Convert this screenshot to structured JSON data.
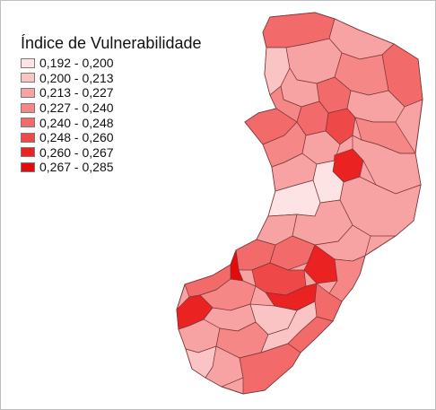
{
  "legend": {
    "title": "Índice de Vulnerabilidade",
    "classes": [
      {
        "label": "0,192 - 0,200",
        "color": "#fde3e3"
      },
      {
        "label": "0,200 - 0,213",
        "color": "#fbc4c4"
      },
      {
        "label": "0,213 - 0,227",
        "color": "#f8a3a3"
      },
      {
        "label": "0,227 - 0,240",
        "color": "#f58787"
      },
      {
        "label": "0,240 - 0,248",
        "color": "#f26a6a"
      },
      {
        "label": "0,248 - 0,260",
        "color": "#ee4848"
      },
      {
        "label": "0,260 - 0,267",
        "color": "#eb2222"
      },
      {
        "label": "0,267 - 0,285",
        "color": "#e30b0b"
      }
    ]
  },
  "map": {
    "border_color": "#7a3535"
  }
}
